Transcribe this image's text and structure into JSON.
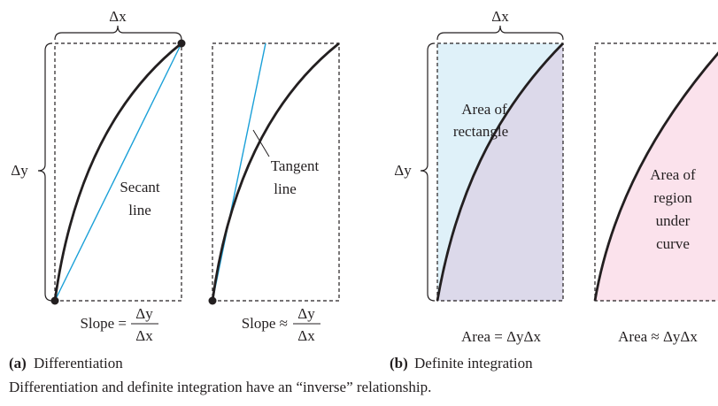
{
  "panels": [
    {
      "top_label": "Δx",
      "side_label": "Δy",
      "curve_label": [
        "Secant",
        "line"
      ],
      "formula": {
        "lhs": "Slope =",
        "numerator": "Δy",
        "denominator": "Δx"
      }
    },
    {
      "curve_label": [
        "Tangent",
        "line"
      ],
      "formula": {
        "lhs": "Slope ≈",
        "numerator": "Δy",
        "denominator": "Δx"
      }
    },
    {
      "top_label": "Δx",
      "side_label": "Δy",
      "region_label": [
        "Area of",
        "rectangle"
      ],
      "formula": "Area = ΔyΔx"
    },
    {
      "region_label": [
        "Area of",
        "region",
        "under",
        "curve"
      ],
      "formula": "Area ≈ ΔyΔx"
    }
  ],
  "subcaptions": [
    {
      "tag": "(a)",
      "text": "Differentiation"
    },
    {
      "tag": "(b)",
      "text": "Definite integration"
    }
  ],
  "caption": "Differentiation and definite integration have an “inverse” relationship."
}
